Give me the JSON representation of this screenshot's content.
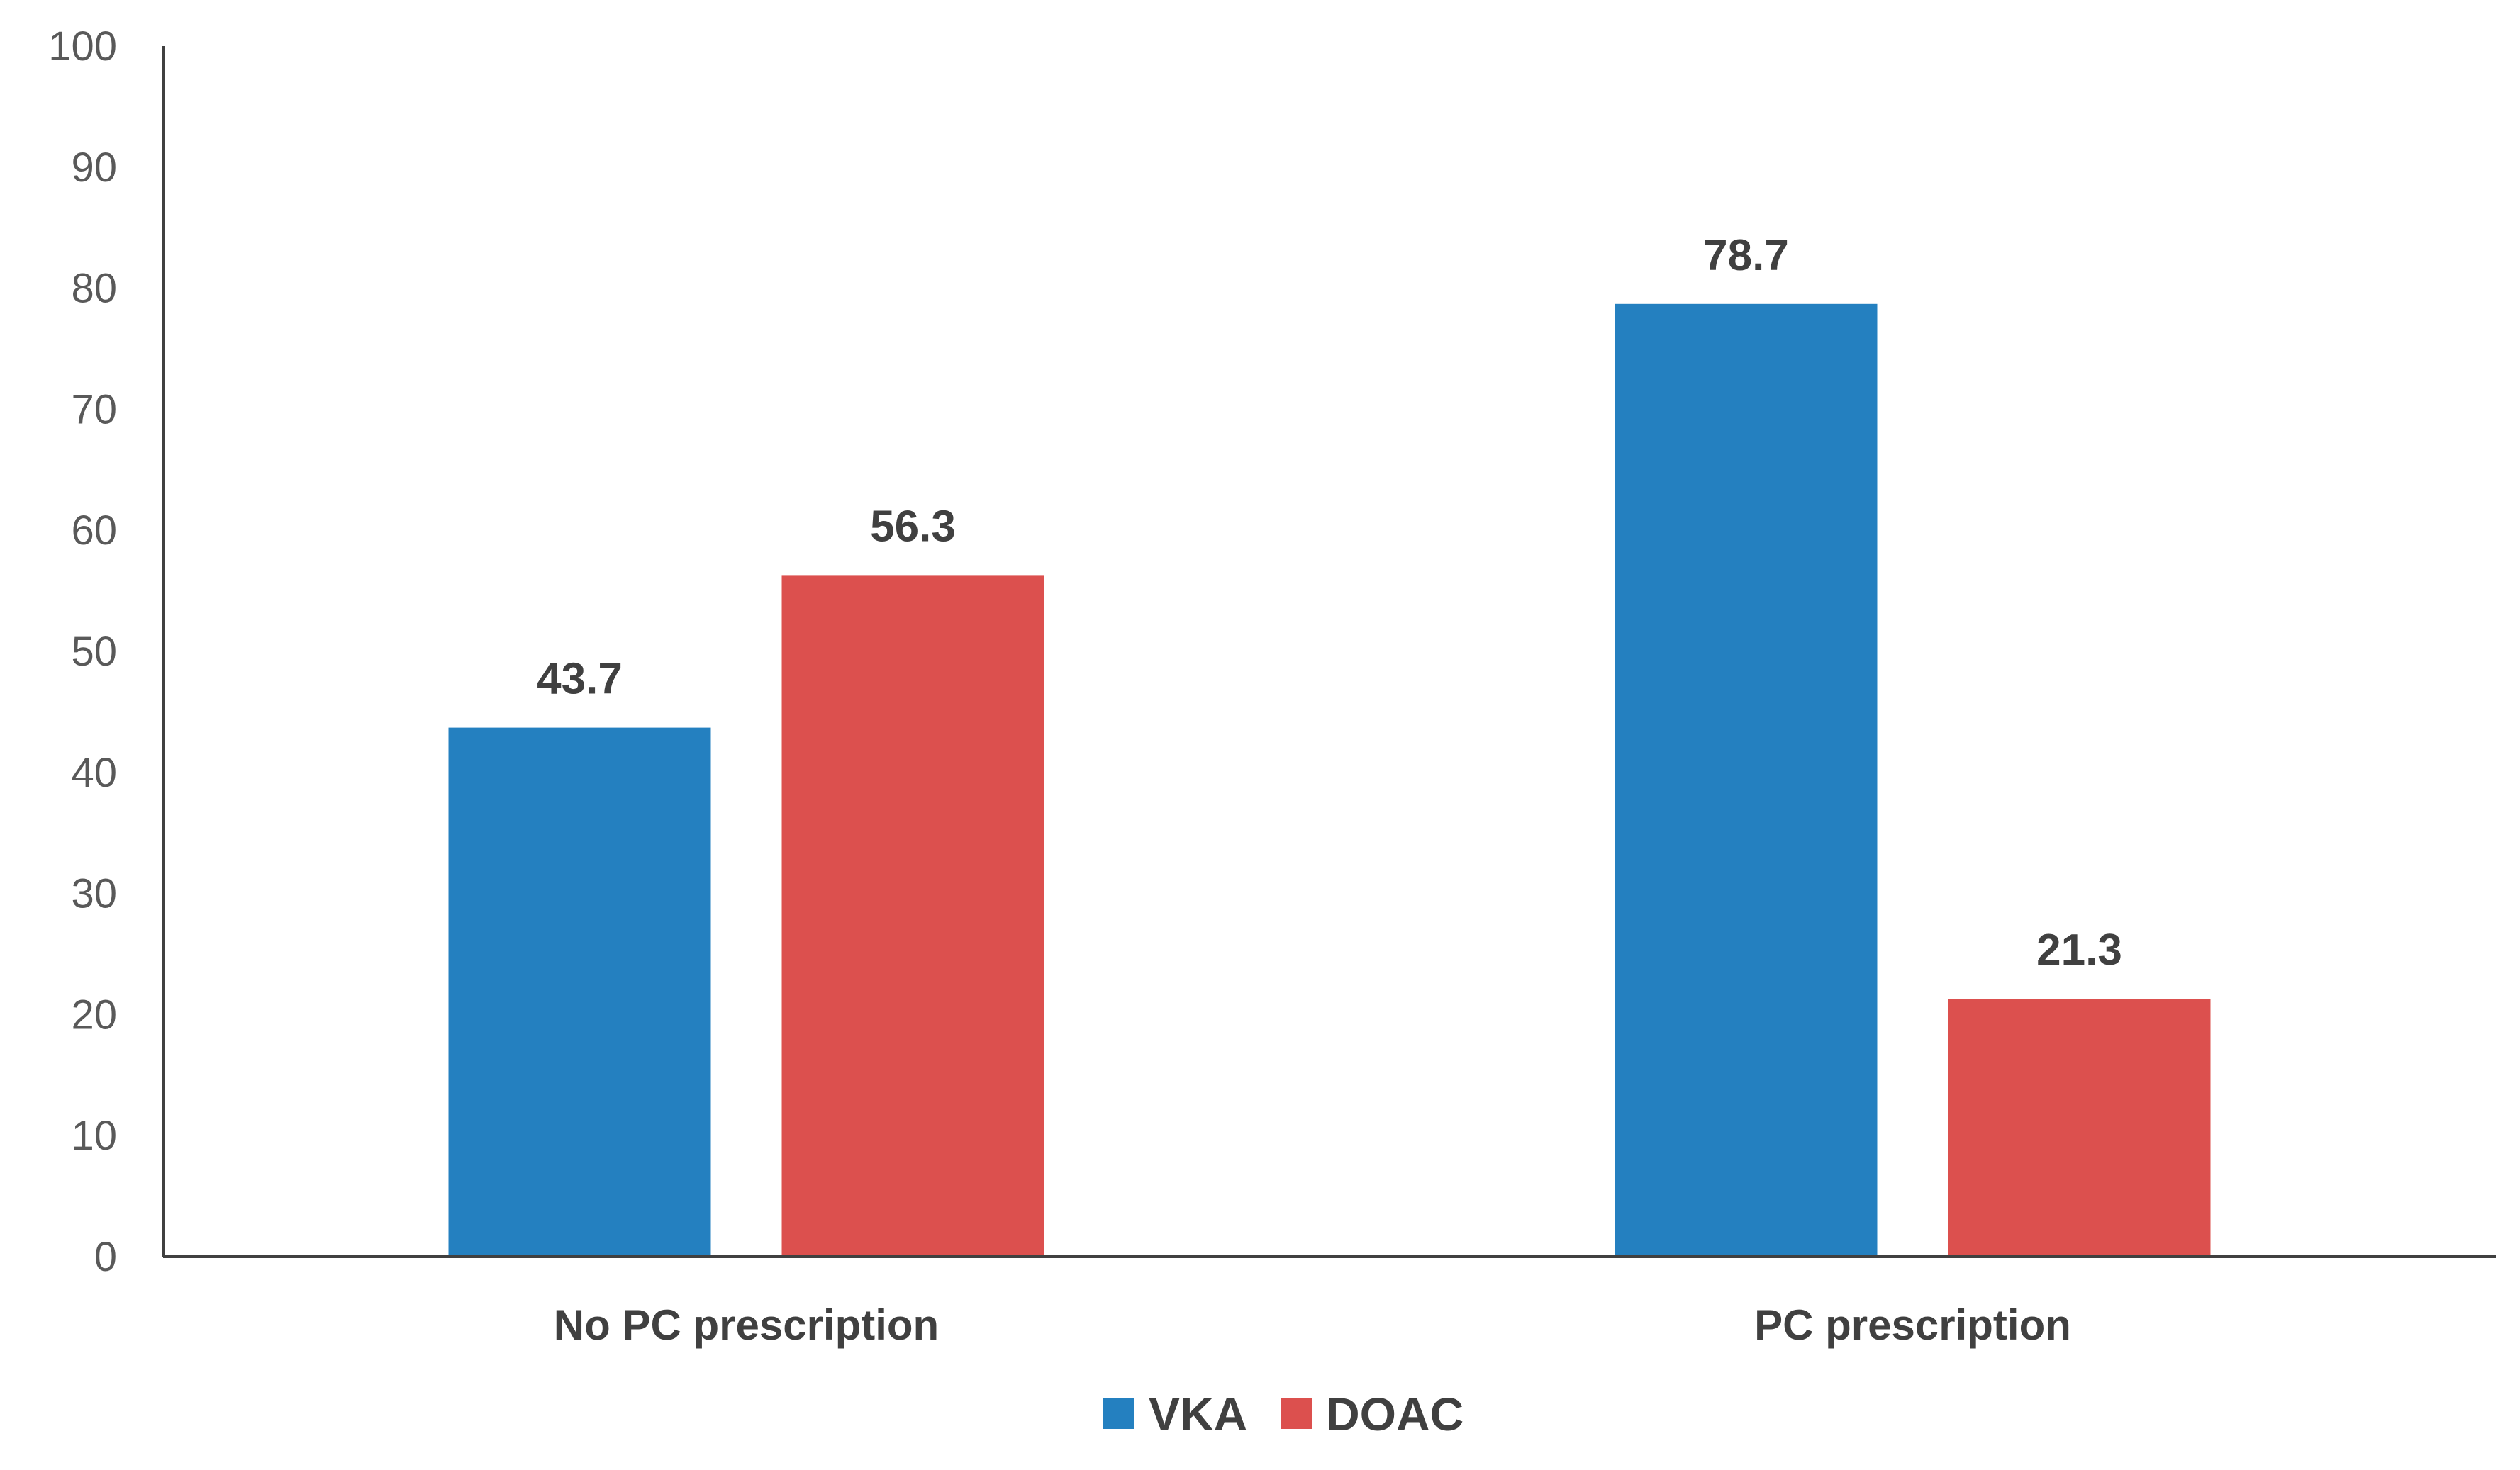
{
  "chart_data": {
    "type": "bar",
    "title": "",
    "xlabel": "",
    "ylabel": "",
    "categories": [
      "No PC prescription",
      "PC prescription"
    ],
    "series": [
      {
        "name": "VKA",
        "color": "#2480C0",
        "values": [
          43.7,
          78.7
        ],
        "labels": [
          "43.7",
          "78.7"
        ]
      },
      {
        "name": "DOAC",
        "color": "#DC504E",
        "values": [
          56.3,
          21.3
        ],
        "labels": [
          "56.3",
          "21.3"
        ]
      }
    ],
    "ylim": [
      0,
      100
    ],
    "yticks": [
      "0",
      "10",
      "20",
      "30",
      "40",
      "50",
      "60",
      "70",
      "80",
      "90",
      "100"
    ],
    "grid": false,
    "legend_position": "bottom-center"
  }
}
